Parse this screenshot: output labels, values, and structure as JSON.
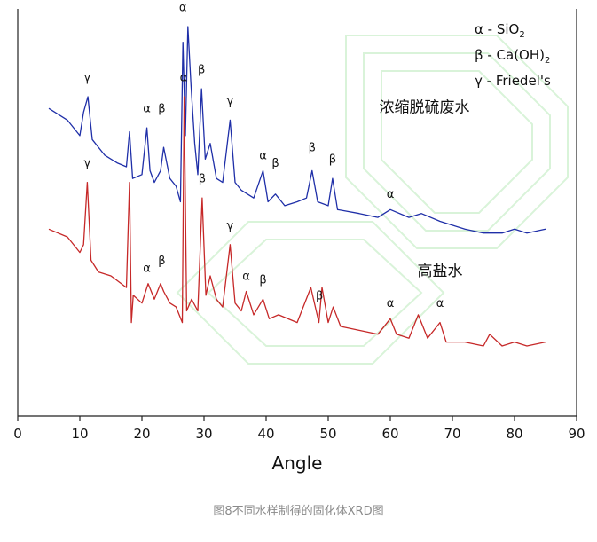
{
  "chart_data": {
    "type": "line",
    "title": "",
    "xlabel": "Angle",
    "ylabel": "",
    "xlim": [
      0,
      90
    ],
    "x_ticks": [
      0,
      10,
      20,
      30,
      40,
      50,
      60,
      70,
      80,
      90
    ],
    "y_axis_values_shown": false,
    "legend": {
      "placement": "top-right",
      "entries": [
        {
          "symbol": "α",
          "text": "- SiO",
          "sub": "2"
        },
        {
          "symbol": "β",
          "text": "- Ca(OH)",
          "sub": "2"
        },
        {
          "symbol": "γ",
          "text": "- Friedel's",
          "sub": ""
        }
      ]
    },
    "series": [
      {
        "name": "浓缩脱硫废水",
        "color": "#1f2fa8",
        "x": [
          5.0,
          8.0,
          10.0,
          10.6,
          11.3,
          12.0,
          14.0,
          16.0,
          17.5,
          18.0,
          18.5,
          20.0,
          20.8,
          21.3,
          22.0,
          23.0,
          23.5,
          24.5,
          25.5,
          26.2,
          26.6,
          27.0,
          27.4,
          27.9,
          28.5,
          29.0,
          29.6,
          30.2,
          31.0,
          32.0,
          33.0,
          34.2,
          35.0,
          36.0,
          38.0,
          39.5,
          40.3,
          41.5,
          43.0,
          45.0,
          46.5,
          47.4,
          48.3,
          50.0,
          50.7,
          51.5,
          55.0,
          58.0,
          60.0,
          63.0,
          65.0,
          68.0,
          70.0,
          72.0,
          75.0,
          78.0,
          80.0,
          82.0,
          85.0
        ],
        "y": [
          0.79,
          0.76,
          0.72,
          0.78,
          0.82,
          0.71,
          0.67,
          0.65,
          0.64,
          0.73,
          0.61,
          0.62,
          0.74,
          0.63,
          0.6,
          0.63,
          0.69,
          0.61,
          0.59,
          0.55,
          0.96,
          0.72,
          1.0,
          0.85,
          0.7,
          0.62,
          0.84,
          0.66,
          0.7,
          0.61,
          0.6,
          0.76,
          0.6,
          0.58,
          0.56,
          0.63,
          0.55,
          0.57,
          0.54,
          0.55,
          0.56,
          0.63,
          0.55,
          0.54,
          0.61,
          0.53,
          0.52,
          0.51,
          0.53,
          0.51,
          0.52,
          0.5,
          0.49,
          0.48,
          0.47,
          0.47,
          0.48,
          0.47,
          0.48
        ]
      },
      {
        "name": "高盐水",
        "color": "#c62828",
        "x": [
          5.0,
          8.0,
          10.0,
          10.6,
          11.2,
          11.8,
          13.0,
          15.0,
          17.5,
          18.0,
          18.3,
          18.6,
          20.0,
          21.0,
          22.0,
          23.0,
          23.5,
          24.5,
          25.5,
          26.5,
          26.8,
          27.2,
          28.0,
          29.0,
          29.7,
          30.3,
          31.0,
          32.0,
          33.0,
          34.2,
          35.0,
          36.0,
          36.8,
          38.0,
          39.5,
          40.5,
          42.0,
          45.0,
          47.2,
          48.5,
          49.0,
          50.0,
          50.8,
          52.0,
          55.0,
          58.0,
          60.0,
          61.0,
          63.0,
          64.5,
          66.0,
          68.0,
          69.0,
          72.0,
          75.0,
          76.0,
          78.0,
          80.0,
          82.0,
          85.0
        ],
        "y": [
          0.48,
          0.46,
          0.42,
          0.44,
          0.6,
          0.4,
          0.37,
          0.36,
          0.33,
          0.6,
          0.24,
          0.31,
          0.29,
          0.34,
          0.3,
          0.34,
          0.32,
          0.29,
          0.28,
          0.24,
          0.82,
          0.27,
          0.3,
          0.27,
          0.56,
          0.31,
          0.36,
          0.3,
          0.28,
          0.44,
          0.29,
          0.27,
          0.32,
          0.26,
          0.3,
          0.25,
          0.26,
          0.24,
          0.33,
          0.24,
          0.33,
          0.24,
          0.28,
          0.23,
          0.22,
          0.21,
          0.25,
          0.21,
          0.2,
          0.26,
          0.2,
          0.24,
          0.19,
          0.19,
          0.18,
          0.21,
          0.18,
          0.19,
          0.18,
          0.19
        ]
      }
    ],
    "series_labels": [
      {
        "series": 0,
        "text": "浓缩脱硫废水",
        "x": 65.5,
        "y": 0.78
      },
      {
        "series": 1,
        "text": "高盐水",
        "x": 68.0,
        "y": 0.36
      }
    ],
    "annotations": [
      {
        "text": "γ",
        "x": 11.2,
        "y": 0.86
      },
      {
        "text": "α",
        "x": 20.8,
        "y": 0.78
      },
      {
        "text": "β",
        "x": 23.2,
        "y": 0.78
      },
      {
        "text": "α",
        "x": 26.6,
        "y": 1.04
      },
      {
        "text": "β",
        "x": 29.6,
        "y": 0.88
      },
      {
        "text": "γ",
        "x": 34.2,
        "y": 0.8
      },
      {
        "text": "α",
        "x": 39.5,
        "y": 0.66
      },
      {
        "text": "β",
        "x": 41.5,
        "y": 0.64
      },
      {
        "text": "β",
        "x": 47.4,
        "y": 0.68
      },
      {
        "text": "β",
        "x": 50.7,
        "y": 0.65
      },
      {
        "text": "α",
        "x": 60.0,
        "y": 0.56
      },
      {
        "text": "α",
        "x": 26.7,
        "y": 0.86
      },
      {
        "text": "γ",
        "x": 11.2,
        "y": 0.64
      },
      {
        "text": "β",
        "x": 29.7,
        "y": 0.6
      },
      {
        "text": "γ",
        "x": 34.2,
        "y": 0.48
      },
      {
        "text": "α",
        "x": 20.8,
        "y": 0.37
      },
      {
        "text": "β",
        "x": 23.2,
        "y": 0.39
      },
      {
        "text": "α",
        "x": 36.8,
        "y": 0.35
      },
      {
        "text": "β",
        "x": 39.5,
        "y": 0.34
      },
      {
        "text": "β",
        "x": 48.6,
        "y": 0.3
      },
      {
        "text": "α",
        "x": 60.0,
        "y": 0.28
      },
      {
        "text": "α",
        "x": 68.0,
        "y": 0.28
      }
    ]
  },
  "caption": "图8不同水样制得的固化体XRD图"
}
